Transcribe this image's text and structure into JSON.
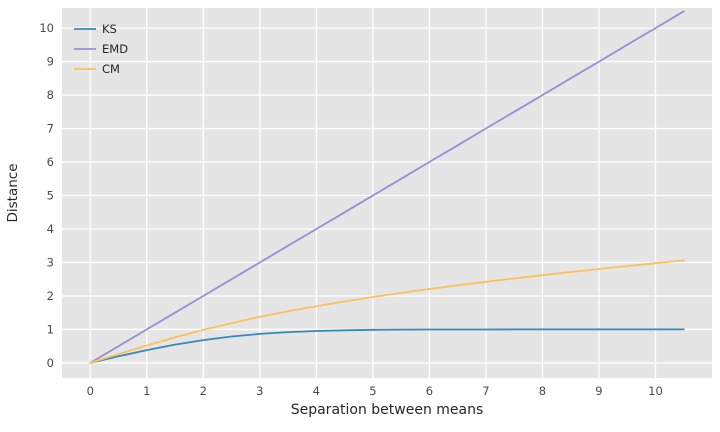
{
  "figure": {
    "background": "#ffffff",
    "plot_background": "#e5e5e5",
    "grid_color": "#ffffff",
    "tick_color": "#4a4a4a",
    "label_color": "#262626",
    "legend_text_color": "#262626"
  },
  "chart_data": {
    "type": "line",
    "title": "",
    "xlabel": "Separation between means",
    "ylabel": "Distance",
    "xlim": [
      -0.5,
      11.0
    ],
    "ylim": [
      -0.45,
      10.6
    ],
    "xticks": [
      0,
      1,
      2,
      3,
      4,
      5,
      6,
      7,
      8,
      9,
      10
    ],
    "yticks": [
      0,
      1,
      2,
      3,
      4,
      5,
      6,
      7,
      8,
      9,
      10
    ],
    "grid": true,
    "legend_position": "upper-left",
    "x": [
      0,
      0.5,
      1,
      1.5,
      2,
      2.5,
      3,
      3.5,
      4,
      4.5,
      5,
      5.5,
      6,
      6.5,
      7,
      7.5,
      8,
      8.5,
      9,
      9.5,
      10,
      10.5
    ],
    "series": [
      {
        "name": "KS",
        "color": "#348ABD",
        "values": [
          0,
          0.197,
          0.383,
          0.547,
          0.683,
          0.789,
          0.866,
          0.92,
          0.954,
          0.976,
          0.988,
          0.994,
          0.997,
          0.999,
          0.999,
          1.0,
          1.0,
          1.0,
          1.0,
          1.0,
          1.0,
          1.0
        ]
      },
      {
        "name": "EMD",
        "color": "#988ED5",
        "values": [
          0,
          0.5,
          1,
          1.5,
          2,
          2.5,
          3,
          3.5,
          4,
          4.5,
          5,
          5.5,
          6,
          6.5,
          7,
          7.5,
          8,
          8.5,
          9,
          9.5,
          10,
          10.5
        ]
      },
      {
        "name": "CM",
        "color": "#FBC15E",
        "values": [
          0,
          0.264,
          0.52,
          0.762,
          0.986,
          1.19,
          1.374,
          1.542,
          1.695,
          1.836,
          1.968,
          2.091,
          2.207,
          2.318,
          2.423,
          2.524,
          2.621,
          2.715,
          2.806,
          2.893,
          2.978,
          3.061
        ]
      }
    ]
  }
}
